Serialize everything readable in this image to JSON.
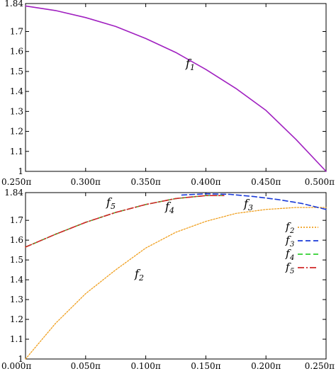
{
  "chart_data": [
    {
      "type": "line",
      "title": "",
      "xlabel": "",
      "ylabel": "",
      "xlim": [
        0.25,
        0.5
      ],
      "ylim": [
        1.0,
        1.84
      ],
      "x_unit": "π",
      "x_ticks": [
        0.25,
        0.3,
        0.35,
        0.4,
        0.45,
        0.5
      ],
      "x_tick_labels": [
        "0.250π",
        "0.300π",
        "0.350π",
        "0.400π",
        "0.450π",
        "0.500π"
      ],
      "y_ticks": [
        1.0,
        1.1,
        1.2,
        1.3,
        1.4,
        1.5,
        1.6,
        1.7,
        1.84
      ],
      "y_tick_labels": [
        "1",
        "1.1",
        "1.2",
        "1.3",
        "1.4",
        "1.5",
        "1.6",
        "1.7",
        "1.84"
      ],
      "grid": false,
      "legend": "none",
      "series": [
        {
          "name": "f1",
          "label_text": "f",
          "label_sub": "1",
          "color": "#a020c0",
          "style": "solid",
          "x": [
            0.25,
            0.275,
            0.3,
            0.325,
            0.35,
            0.375,
            0.4,
            0.425,
            0.45,
            0.475,
            0.5
          ],
          "y": [
            1.828,
            1.805,
            1.77,
            1.725,
            1.665,
            1.595,
            1.51,
            1.415,
            1.305,
            1.16,
            1.0
          ]
        }
      ]
    },
    {
      "type": "line",
      "title": "",
      "xlabel": "",
      "ylabel": "",
      "xlim": [
        0.0,
        0.25
      ],
      "ylim": [
        1.0,
        1.84
      ],
      "x_unit": "π",
      "x_ticks": [
        0.0,
        0.05,
        0.1,
        0.15,
        0.2,
        0.25
      ],
      "x_tick_labels": [
        "0.000π",
        "0.050π",
        "0.100π",
        "0.150π",
        "0.200π",
        "0.250π"
      ],
      "y_ticks": [
        1.0,
        1.1,
        1.2,
        1.3,
        1.4,
        1.5,
        1.6,
        1.7,
        1.84
      ],
      "y_tick_labels": [
        "1",
        "1.1",
        "1.2",
        "1.3",
        "1.4",
        "1.5",
        "1.6",
        "1.7",
        "1.84"
      ],
      "grid": false,
      "legend": "right",
      "series": [
        {
          "name": "f2",
          "label_text": "f",
          "label_sub": "2",
          "color": "#f0a020",
          "style": "dotted",
          "x": [
            0.0,
            0.025,
            0.05,
            0.075,
            0.1,
            0.125,
            0.15,
            0.175,
            0.2,
            0.225,
            0.25
          ],
          "y": [
            1.0,
            1.18,
            1.33,
            1.45,
            1.56,
            1.64,
            1.695,
            1.735,
            1.755,
            1.765,
            1.765
          ]
        },
        {
          "name": "f3",
          "label_text": "f",
          "label_sub": "3",
          "color": "#1a3ad8",
          "style": "dashed",
          "x": [
            0.13,
            0.15,
            0.17,
            0.19,
            0.21,
            0.23,
            0.25
          ],
          "y": [
            1.828,
            1.834,
            1.831,
            1.82,
            1.805,
            1.785,
            1.755
          ]
        },
        {
          "name": "f4",
          "label_text": "f",
          "label_sub": "4",
          "color": "#30d030",
          "style": "dashed",
          "x": [
            0.0,
            0.025,
            0.05,
            0.075,
            0.1,
            0.125,
            0.15,
            0.165
          ],
          "y": [
            1.565,
            1.63,
            1.69,
            1.74,
            1.78,
            1.81,
            1.825,
            1.825
          ]
        },
        {
          "name": "f5",
          "label_text": "f",
          "label_sub": "5",
          "color": "#d02828",
          "style": "dashdot",
          "x": [
            0.0,
            0.025,
            0.05,
            0.075,
            0.1,
            0.125,
            0.15,
            0.165
          ],
          "y": [
            1.565,
            1.63,
            1.69,
            1.74,
            1.78,
            1.81,
            1.825,
            1.825
          ]
        }
      ]
    }
  ]
}
